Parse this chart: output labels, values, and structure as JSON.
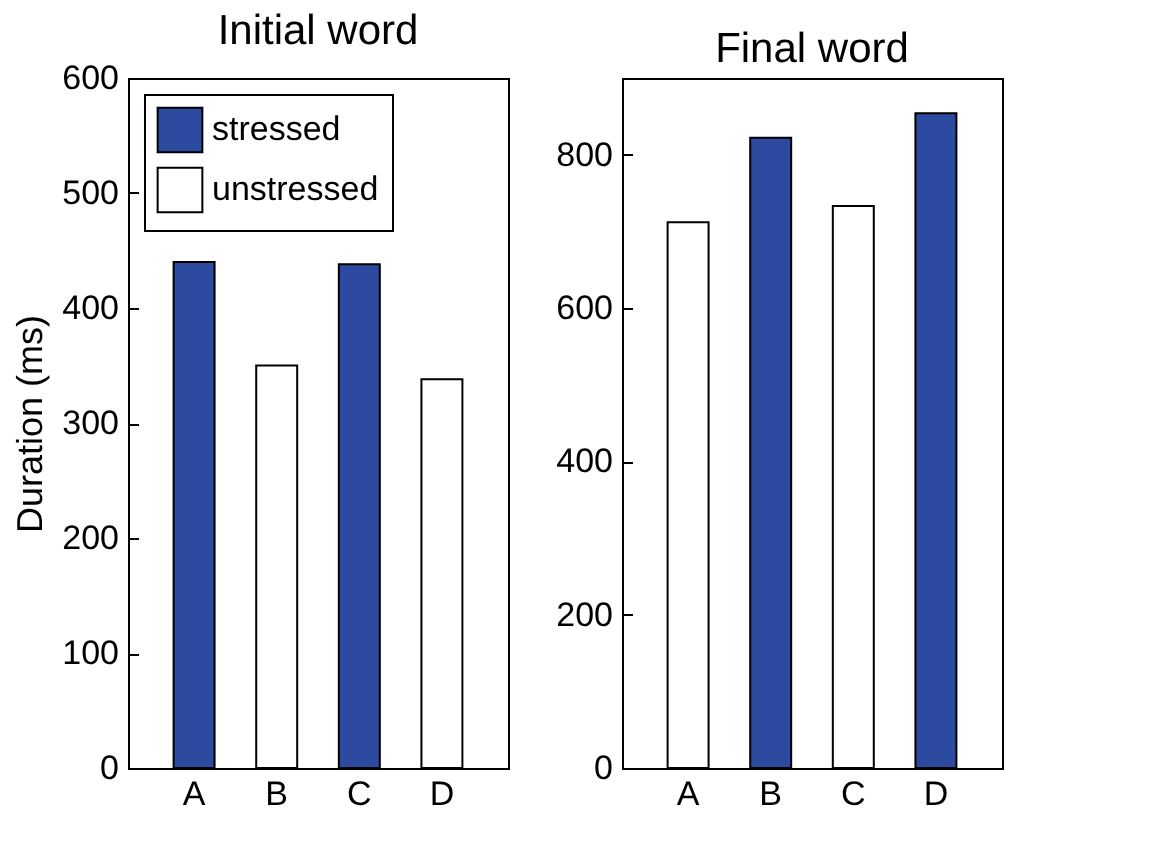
{
  "chart_data": [
    {
      "type": "bar",
      "title": "Initial word",
      "ylabel": "Duration (ms)",
      "categories": [
        "A",
        "B",
        "C",
        "D"
      ],
      "ylim": [
        0,
        600
      ],
      "yticks": [
        0,
        100,
        200,
        300,
        400,
        500,
        600
      ],
      "legend": "top left",
      "series": [
        {
          "name": "stressed",
          "color": "#2c4a9f",
          "values": [
            440,
            null,
            438,
            null
          ]
        },
        {
          "name": "unstressed",
          "color": "#ffffff",
          "values": [
            null,
            350,
            null,
            338
          ]
        }
      ]
    },
    {
      "type": "bar",
      "title": "Final word",
      "categories": [
        "A",
        "B",
        "C",
        "D"
      ],
      "ylim": [
        0,
        900
      ],
      "yticks": [
        0,
        200,
        400,
        600,
        800
      ],
      "series": [
        {
          "color": "#2c4a9f",
          "values": [
            null,
            822,
            null,
            854
          ]
        },
        {
          "color": "#ffffff",
          "values": [
            712,
            null,
            733,
            null
          ]
        }
      ]
    }
  ]
}
